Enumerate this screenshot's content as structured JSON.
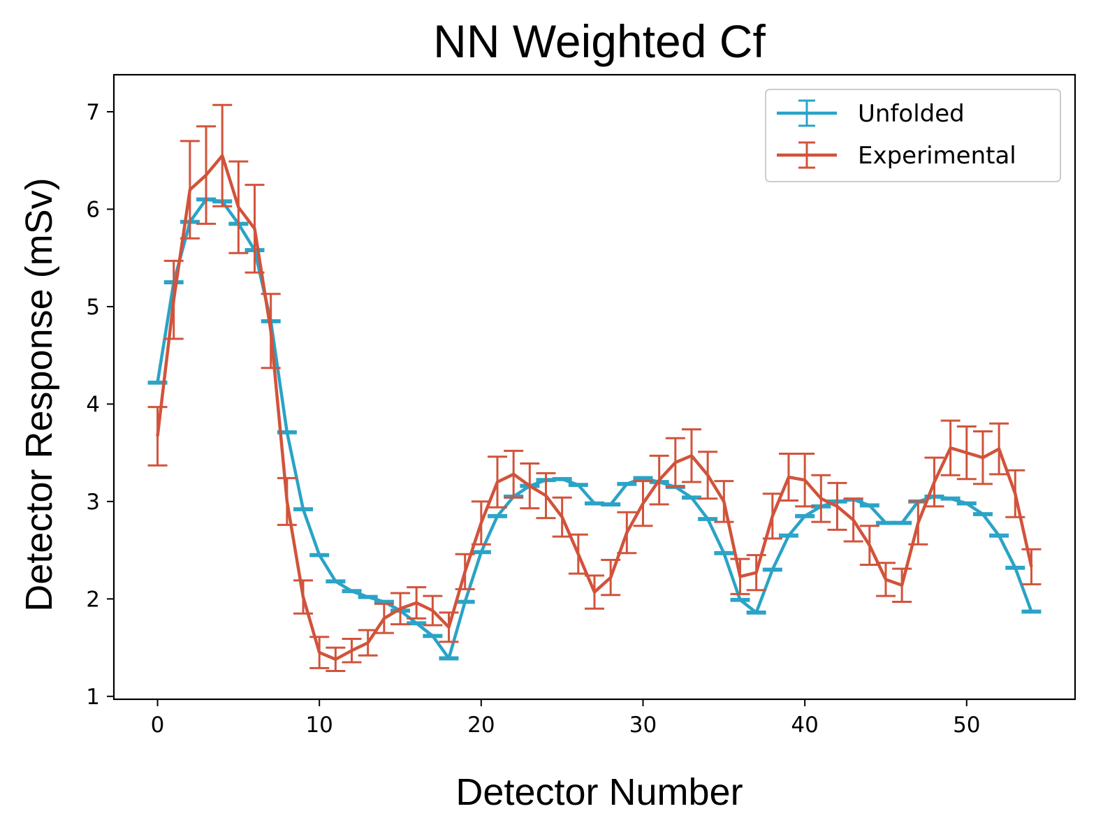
{
  "chart_data": {
    "type": "line",
    "title": "NN Weighted Cf",
    "xlabel": "Detector Number",
    "ylabel": "Detector Response (mSv)",
    "xlim": [
      -2.7,
      56.7
    ],
    "ylim": [
      0.97,
      7.38
    ],
    "xticks": [
      "0",
      "10",
      "20",
      "30",
      "40",
      "50"
    ],
    "yticks": [
      "1",
      "2",
      "3",
      "4",
      "5",
      "6",
      "7"
    ],
    "legend_position": "top-right",
    "series": [
      {
        "name": "Unfolded",
        "color": "#2aa3c7",
        "x": [
          0,
          1,
          2,
          3,
          4,
          5,
          6,
          7,
          8,
          9,
          10,
          11,
          12,
          13,
          14,
          15,
          16,
          17,
          18,
          19,
          20,
          21,
          22,
          23,
          24,
          25,
          26,
          27,
          28,
          29,
          30,
          31,
          32,
          33,
          34,
          35,
          36,
          37,
          38,
          39,
          40,
          41,
          42,
          43,
          44,
          45,
          46,
          47,
          48,
          49,
          50,
          51,
          52,
          53,
          54
        ],
        "y": [
          4.22,
          5.25,
          5.87,
          6.1,
          6.08,
          5.85,
          5.58,
          4.85,
          3.71,
          2.92,
          2.45,
          2.18,
          2.08,
          2.02,
          1.97,
          1.88,
          1.75,
          1.62,
          1.39,
          1.97,
          2.48,
          2.85,
          3.05,
          3.16,
          3.22,
          3.23,
          3.17,
          2.98,
          2.97,
          3.18,
          3.24,
          3.2,
          3.15,
          3.04,
          2.82,
          2.47,
          1.99,
          1.86,
          2.3,
          2.65,
          2.85,
          2.95,
          3.0,
          3.02,
          2.96,
          2.78,
          2.78,
          3.0,
          3.05,
          3.03,
          2.98,
          2.87,
          2.65,
          2.32,
          1.87
        ],
        "err": [
          0.01,
          0.01,
          0.01,
          0.01,
          0.01,
          0.01,
          0.01,
          0.01,
          0.01,
          0.01,
          0.01,
          0.01,
          0.01,
          0.01,
          0.01,
          0.01,
          0.01,
          0.01,
          0.01,
          0.01,
          0.01,
          0.01,
          0.01,
          0.01,
          0.01,
          0.01,
          0.01,
          0.01,
          0.01,
          0.01,
          0.01,
          0.01,
          0.01,
          0.01,
          0.01,
          0.01,
          0.01,
          0.01,
          0.01,
          0.01,
          0.01,
          0.01,
          0.01,
          0.01,
          0.01,
          0.01,
          0.01,
          0.01,
          0.01,
          0.01,
          0.01,
          0.01,
          0.01,
          0.01,
          0.01
        ]
      },
      {
        "name": "Experimental",
        "color": "#d1533b",
        "x": [
          0,
          1,
          2,
          3,
          4,
          5,
          6,
          7,
          8,
          9,
          10,
          11,
          12,
          13,
          14,
          15,
          16,
          17,
          18,
          19,
          20,
          21,
          22,
          23,
          24,
          25,
          26,
          27,
          28,
          29,
          30,
          31,
          32,
          33,
          34,
          35,
          36,
          37,
          38,
          39,
          40,
          41,
          42,
          43,
          44,
          45,
          46,
          47,
          48,
          49,
          50,
          51,
          52,
          53,
          54
        ],
        "y": [
          3.67,
          5.07,
          6.2,
          6.35,
          6.55,
          6.02,
          5.8,
          4.75,
          3.0,
          2.02,
          1.45,
          1.38,
          1.47,
          1.55,
          1.8,
          1.9,
          1.96,
          1.88,
          1.71,
          2.28,
          2.78,
          3.2,
          3.28,
          3.16,
          3.06,
          2.84,
          2.46,
          2.07,
          2.22,
          2.68,
          2.98,
          3.22,
          3.4,
          3.47,
          3.27,
          3.0,
          2.23,
          2.27,
          2.85,
          3.25,
          3.22,
          3.03,
          2.95,
          2.81,
          2.55,
          2.2,
          2.14,
          2.78,
          3.2,
          3.55,
          3.5,
          3.45,
          3.54,
          3.08,
          2.33
        ],
        "err": [
          0.3,
          0.4,
          0.5,
          0.5,
          0.52,
          0.47,
          0.45,
          0.38,
          0.24,
          0.17,
          0.16,
          0.12,
          0.12,
          0.13,
          0.15,
          0.16,
          0.16,
          0.15,
          0.15,
          0.18,
          0.22,
          0.26,
          0.24,
          0.23,
          0.23,
          0.2,
          0.2,
          0.17,
          0.18,
          0.21,
          0.23,
          0.25,
          0.25,
          0.27,
          0.24,
          0.21,
          0.18,
          0.18,
          0.23,
          0.24,
          0.27,
          0.24,
          0.24,
          0.22,
          0.2,
          0.17,
          0.17,
          0.22,
          0.25,
          0.28,
          0.27,
          0.27,
          0.26,
          0.24,
          0.18
        ]
      }
    ]
  }
}
